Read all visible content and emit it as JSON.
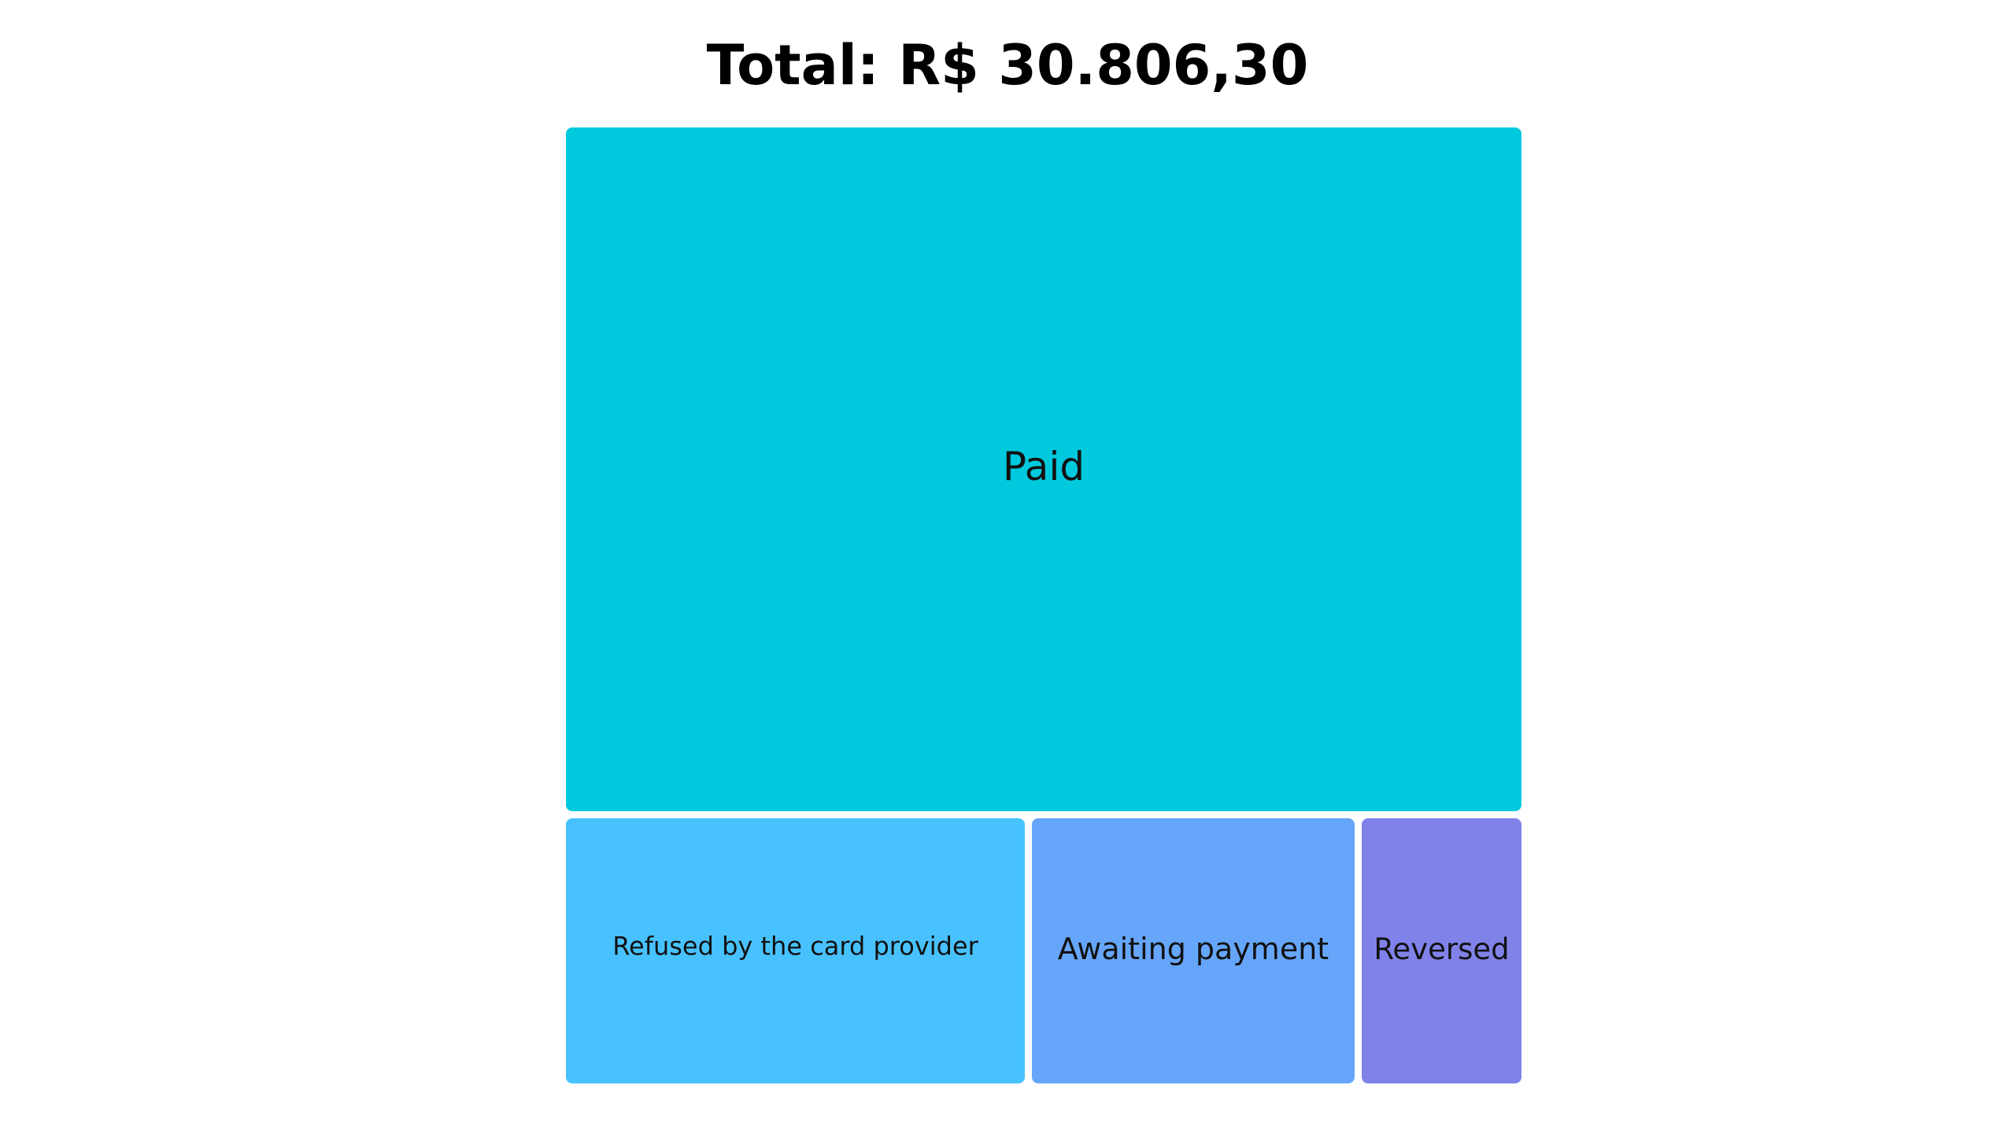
{
  "chart_data": {
    "type": "treemap",
    "title": "Total: R$ 30.806,30",
    "items": [
      {
        "label": "Paid",
        "color": "#00C9DD"
      },
      {
        "label": "Refused by the card provider",
        "color": "#48C2FF"
      },
      {
        "label": "Awaiting payment",
        "color": "#66A6FA"
      },
      {
        "label": "Reversed",
        "color": "#8182E9"
      }
    ]
  }
}
